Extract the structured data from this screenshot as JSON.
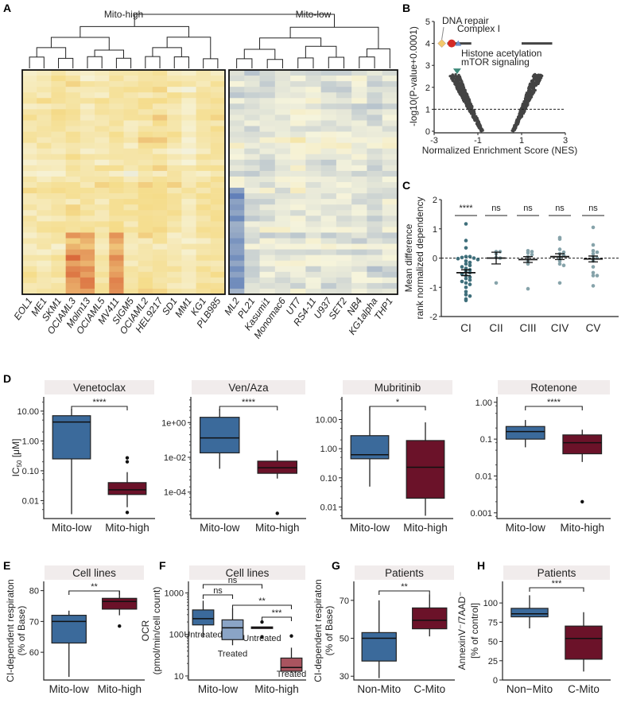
{
  "panel_letters": [
    "A",
    "B",
    "C",
    "D",
    "E",
    "F",
    "G",
    "H"
  ],
  "colors": {
    "mito_low": "#3b6a9b",
    "mito_high": "#6b1229",
    "treated_low": "#8aa4c6",
    "treated_high": "#a9545f",
    "strip": "#f1ecec",
    "c_ci": "#3f6f7b",
    "c_other": "#86a3aa"
  },
  "chart_data": [
    {
      "panel": "A",
      "type": "heatmap",
      "cluster_titles": [
        "Mito-high",
        "Mito-low"
      ],
      "columns_mito_high": [
        "EOL1",
        "ME1",
        "SKM1",
        "OCIAML3",
        "Molm13",
        "OCIAML5",
        "MV411",
        "SIGM5",
        "OCIAML2",
        "HEL9217",
        "SD1",
        "MM1",
        "KG1",
        "PLB985"
      ],
      "columns_mito_low": [
        "ML2",
        "PL21",
        "Kasumi1",
        "Monomac6",
        "UT7",
        "RS4-11",
        "U937",
        "SET2",
        "NB4",
        "KG1alpha",
        "THP1"
      ],
      "color_scale": [
        "#4a6eb3",
        "#f6f4dc",
        "#f5dc8a",
        "#d9673a"
      ]
    },
    {
      "panel": "B",
      "type": "scatter",
      "xlabel": "Normalized Enrichment Score (NES)",
      "ylabel": "-log10(P-value+0.0001)",
      "xlim": [
        -3,
        3
      ],
      "ylim": [
        0,
        5
      ],
      "xticks": [
        "-3",
        "-1",
        "1",
        "3"
      ],
      "yticks": [
        "0",
        "1",
        "2",
        "3",
        "4",
        "5"
      ],
      "threshold_y": 1,
      "highlighted": [
        {
          "label": "DNA repair",
          "x": -2.65,
          "y": 4,
          "shape": "diamond",
          "color": "#f2c96b"
        },
        {
          "label": "Complex I",
          "x": -2.2,
          "y": 4,
          "shape": "circle",
          "color": "#d42a26"
        },
        {
          "label": "Histone acetylation",
          "x": -1.9,
          "y": 4,
          "shape": "triangle",
          "color": "#6f8fc7"
        },
        {
          "label": "mTOR signaling",
          "x": -1.95,
          "y": 2.75,
          "shape": "triangle-down",
          "color": "#3e8a7a"
        }
      ]
    },
    {
      "panel": "C",
      "type": "scatter",
      "ylabel": [
        "Mean difference",
        "rank normalized dependency"
      ],
      "ylim": [
        -2,
        2
      ],
      "yticks": [
        "-2",
        "-1",
        "0",
        "1",
        "2"
      ],
      "groups": [
        {
          "label": "CI",
          "sig": "****",
          "mean": -0.5,
          "sem": 0.1,
          "values": [
            1.17,
            0.6,
            0.35,
            0.05,
            0.05,
            0.02,
            0,
            -0.02,
            -0.05,
            -0.1,
            -0.15,
            -0.2,
            -0.25,
            -0.3,
            -0.35,
            -0.4,
            -0.45,
            -0.5,
            -0.55,
            -0.6,
            -0.65,
            -0.7,
            -0.75,
            -0.8,
            -0.85,
            -0.9,
            -1.0,
            -1.15,
            -1.25,
            -1.3,
            -1.4,
            -1.45
          ]
        },
        {
          "label": "CII",
          "sig": "ns",
          "mean": 0,
          "sem": 0.2,
          "values": [
            0.22,
            0.22,
            0.15,
            0.02,
            0,
            -0.85
          ]
        },
        {
          "label": "CIII",
          "sig": "ns",
          "mean": -0.05,
          "sem": 0.1,
          "values": [
            0.25,
            0.22,
            0.18,
            0.12,
            0.05,
            -0.1,
            -0.2,
            -1.05
          ]
        },
        {
          "label": "CIV",
          "sig": "ns",
          "mean": 0.05,
          "sem": 0.1,
          "values": [
            0.7,
            0.65,
            0.3,
            0.2,
            0.15,
            0.1,
            0,
            -0.1,
            -0.2,
            -0.25,
            -0.85
          ]
        },
        {
          "label": "CV",
          "sig": "ns",
          "mean": -0.03,
          "sem": 0.1,
          "values": [
            1.05,
            0.45,
            0.25,
            0.2,
            0.15,
            0.05,
            0,
            -0.1,
            -0.3,
            -0.5,
            -0.6,
            -0.6,
            -0.95
          ]
        }
      ]
    },
    {
      "panel": "D",
      "type": "box",
      "title": "Venetoclax",
      "scale": "log",
      "ylabel": {
        "main": "IC",
        "sub": "50",
        "unit": " [μM]"
      },
      "ylim": [
        0.0025,
        30
      ],
      "yticks": [
        {
          "v": 0.01,
          "t": "0.01"
        },
        {
          "v": 0.1,
          "t": "0.10"
        },
        {
          "v": 1,
          "t": "1.00"
        },
        {
          "v": 10,
          "t": "10.00"
        }
      ],
      "groups": [
        {
          "label": "Mito-low",
          "color": "mito_low",
          "stats": [
            0.0035,
            0.25,
            4.3,
            7,
            12
          ],
          "outliers": []
        },
        {
          "label": "Mito-high",
          "color": "mito_high",
          "stats": [
            0.006,
            0.016,
            0.023,
            0.04,
            0.09
          ],
          "outliers": [
            0.2,
            0.27,
            0.004
          ]
        }
      ],
      "sig": [
        {
          "a": 0,
          "b": 1,
          "label": "****"
        }
      ]
    },
    {
      "panel": "D",
      "type": "box",
      "title": "Ven/Aza",
      "scale": "log",
      "ylim": [
        3e-06,
        30
      ],
      "yticks": [
        {
          "v": 0.0001,
          "t": "1e-04"
        },
        {
          "v": 0.01,
          "t": "1e-02"
        },
        {
          "v": 1,
          "t": "1e+00"
        }
      ],
      "groups": [
        {
          "label": "Mito-low",
          "color": "mito_low",
          "stats": [
            0.0022,
            0.018,
            0.13,
            2,
            6
          ],
          "outliers": []
        },
        {
          "label": "Mito-high",
          "color": "mito_high",
          "stats": [
            0.0006,
            0.0012,
            0.0025,
            0.006,
            0.025
          ],
          "outliers": [
            6e-06
          ]
        }
      ],
      "sig": [
        {
          "a": 0,
          "b": 1,
          "label": "****"
        }
      ]
    },
    {
      "panel": "D",
      "type": "box",
      "title": "Mubritinib",
      "scale": "log",
      "ylim": [
        0.004,
        60
      ],
      "yticks": [
        {
          "v": 0.01,
          "t": "0.01"
        },
        {
          "v": 0.1,
          "t": "0.10"
        },
        {
          "v": 1,
          "t": "1.00"
        },
        {
          "v": 10,
          "t": "10.00"
        }
      ],
      "groups": [
        {
          "label": "Mito-low",
          "color": "mito_low",
          "stats": [
            0.05,
            0.45,
            0.62,
            2.8,
            28
          ],
          "outliers": []
        },
        {
          "label": "Mito-high",
          "color": "mito_high",
          "stats": [
            0.005,
            0.02,
            0.23,
            1.9,
            8
          ],
          "outliers": []
        }
      ],
      "sig": [
        {
          "a": 0,
          "b": 1,
          "label": "*"
        }
      ]
    },
    {
      "panel": "D",
      "type": "box",
      "title": "Rotenone",
      "scale": "log",
      "ylim": [
        0.0007,
        1.4
      ],
      "yticks": [
        {
          "v": 0.001,
          "t": "0.001"
        },
        {
          "v": 0.01,
          "t": "0.01"
        },
        {
          "v": 0.1,
          "t": "0.1"
        },
        {
          "v": 1,
          "t": "1.00"
        }
      ],
      "groups": [
        {
          "label": "Mito-low",
          "color": "mito_low",
          "stats": [
            0.06,
            0.1,
            0.16,
            0.22,
            0.33
          ],
          "outliers": []
        },
        {
          "label": "Mito-high",
          "color": "mito_high",
          "stats": [
            0.024,
            0.04,
            0.08,
            0.13,
            0.18
          ],
          "outliers": [
            0.002
          ]
        }
      ],
      "sig": [
        {
          "a": 0,
          "b": 1,
          "label": "****"
        }
      ]
    },
    {
      "panel": "E",
      "type": "box",
      "title": "Cell lines",
      "scale": "linear",
      "ylabel": [
        "CI-dependent respiraton",
        "(% of Base)"
      ],
      "ylim": [
        51,
        83
      ],
      "yticks": [
        {
          "v": 60,
          "t": "60"
        },
        {
          "v": 70,
          "t": "70"
        },
        {
          "v": 80,
          "t": "80"
        }
      ],
      "groups": [
        {
          "label": "Mito-low",
          "color": "mito_low",
          "stats": [
            52,
            63,
            70,
            72,
            73.5
          ],
          "outliers": []
        },
        {
          "label": "Mito-high",
          "color": "mito_high",
          "stats": [
            72,
            74,
            76.5,
            77.5,
            80
          ],
          "outliers": [
            68.5
          ]
        }
      ],
      "sig": [
        {
          "a": 0,
          "b": 1,
          "label": "**"
        }
      ]
    },
    {
      "panel": "F",
      "type": "box",
      "title": "Cell lines",
      "scale": "log",
      "ylabel": [
        "OCR",
        "(pmol/min/cell count)"
      ],
      "ylim": [
        8,
        1900
      ],
      "yticks": [
        {
          "v": 10,
          "t": "10"
        },
        {
          "v": 100,
          "t": "100"
        },
        {
          "v": 1000,
          "t": "1000"
        }
      ],
      "categories": [
        "Mito-low",
        "Mito-high"
      ],
      "groups": [
        {
          "label": "Untreated",
          "color": "mito_low",
          "stats": [
            85,
            170,
            240,
            390,
            650
          ],
          "outliers": []
        },
        {
          "label": "Treated",
          "color": "treated_low",
          "stats": [
            55,
            75,
            145,
            225,
            420
          ],
          "outliers": []
        },
        {
          "label": "Untreated",
          "color": "mito_high",
          "stats": [
            140,
            140,
            148,
            152,
            152
          ],
          "outliers": [
            200,
            88
          ]
        },
        {
          "label": "Treated",
          "color": "treated_high",
          "stats": [
            12,
            13,
            16,
            27,
            48
          ],
          "outliers": [
            92
          ]
        }
      ],
      "sig": [
        {
          "a": 0,
          "b": 2,
          "label": "ns"
        },
        {
          "a": 0,
          "b": 1,
          "label": "ns"
        },
        {
          "a": 1,
          "b": 3,
          "label": "**"
        },
        {
          "a": 2,
          "b": 3,
          "label": "***"
        }
      ]
    },
    {
      "panel": "G",
      "type": "box",
      "title": "Patients",
      "scale": "linear",
      "ylabel": [
        "CI-dependent respiraton",
        "(% of Base)"
      ],
      "ylim": [
        28,
        80
      ],
      "yticks": [
        {
          "v": 30,
          "t": "30"
        },
        {
          "v": 50,
          "t": "50"
        },
        {
          "v": 70,
          "t": "70"
        }
      ],
      "groups": [
        {
          "label": "Non-Mito",
          "color": "mito_low",
          "stats": [
            29,
            38,
            50,
            53,
            70
          ],
          "outliers": []
        },
        {
          "label": "C-Mito",
          "color": "mito_high",
          "stats": [
            51,
            55,
            59.5,
            66,
            73
          ],
          "outliers": []
        }
      ],
      "sig": [
        {
          "a": 0,
          "b": 1,
          "label": "**"
        }
      ]
    },
    {
      "panel": "H",
      "type": "box",
      "title": "Patients",
      "scale": "linear",
      "ylabel": [
        "AnnexinV⁻/7AAD⁻",
        "[% of control]"
      ],
      "ylim": [
        0,
        128
      ],
      "yticks": [
        {
          "v": 0,
          "t": "0"
        },
        {
          "v": 25,
          "t": "25"
        },
        {
          "v": 50,
          "t": "50"
        },
        {
          "v": 75,
          "t": "75"
        },
        {
          "v": 100,
          "t": "100"
        }
      ],
      "groups": [
        {
          "label": "Non−Mito",
          "color": "mito_low",
          "stats": [
            67,
            82,
            86,
            93,
            110
          ],
          "outliers": []
        },
        {
          "label": "C-Mito",
          "color": "mito_high",
          "stats": [
            11,
            27,
            54,
            70,
            88
          ],
          "outliers": []
        }
      ],
      "sig": [
        {
          "a": 0,
          "b": 1,
          "label": "***"
        }
      ]
    }
  ]
}
